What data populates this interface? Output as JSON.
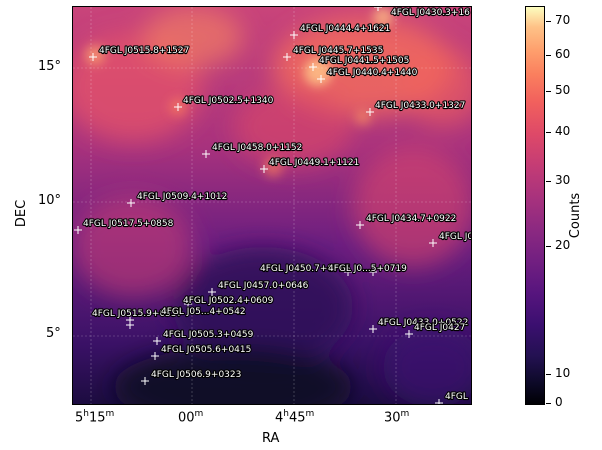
{
  "axes": {
    "xlabel": "RA",
    "ylabel": "DEC",
    "x_ticks": [
      {
        "h": "5",
        "m": "15",
        "label_main": "5",
        "label_h": "h",
        "label_min": "15",
        "label_m": "m"
      },
      {
        "h": "",
        "m": "00",
        "label_main": "",
        "label_h": "",
        "label_min": "00",
        "label_m": "m"
      },
      {
        "h": "4",
        "m": "45",
        "label_main": "4",
        "label_h": "h",
        "label_min": "45",
        "label_m": "m"
      },
      {
        "h": "",
        "m": "30",
        "label_main": "",
        "label_h": "",
        "label_min": "30",
        "label_m": "m"
      }
    ],
    "y_ticks": [
      "15°",
      "10°",
      "5°"
    ]
  },
  "colorbar": {
    "label": "Counts",
    "ticks": [
      "70",
      "60",
      "50",
      "40",
      "30",
      "20",
      "10",
      "0"
    ],
    "colormap": "magma"
  },
  "sources": [
    {
      "name": "4FGL J0430.3+16"
    },
    {
      "name": "4FGL J0444.4+1621"
    },
    {
      "name": "4FGL J0515.8+1527"
    },
    {
      "name": "4FGL J0445.7+1535"
    },
    {
      "name": "4FGL J0441.5+1505"
    },
    {
      "name": "4FGL J0440.4+1440"
    },
    {
      "name": "4FGL J0502.5+1340"
    },
    {
      "name": "4FGL J0433.0+1327"
    },
    {
      "name": "4FGL J0458.0+1152"
    },
    {
      "name": "4FGL J0449.1+1121"
    },
    {
      "name": "4FGL J0509.4+1012"
    },
    {
      "name": "4FGL J0517.5+0858"
    },
    {
      "name": "4FGL J0434.7+0922"
    },
    {
      "name": "4FGL J0"
    },
    {
      "name": "4FGL J0450.7+0715"
    },
    {
      "name": "4FGL J0...5+0719"
    },
    {
      "name": "4FGL J0457.0+0646"
    },
    {
      "name": "4FGL J0502.4+0609"
    },
    {
      "name": "4FGL J0515.9+0537"
    },
    {
      "name": "4FGL J05...4+0542"
    },
    {
      "name": "4FGL J0433.0+0522"
    },
    {
      "name": "4FGL J0427"
    },
    {
      "name": "4FGL J0505.3+0459"
    },
    {
      "name": "4FGL J0505.6+0415"
    },
    {
      "name": "4FGL J0506.9+0323"
    },
    {
      "name": "4FGL"
    }
  ]
}
